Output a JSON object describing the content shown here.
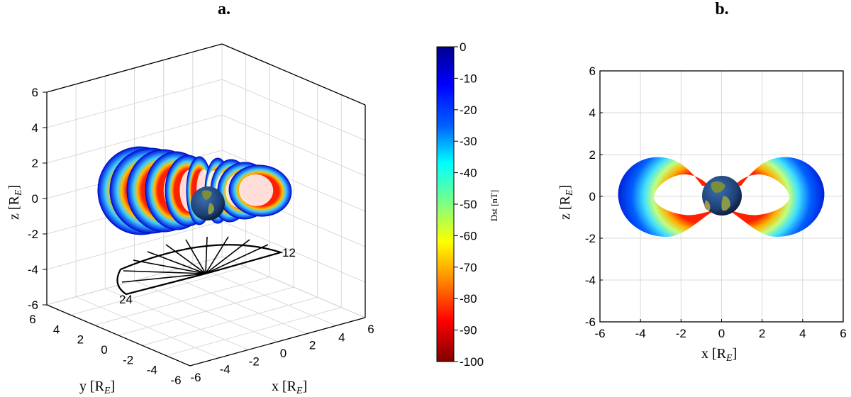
{
  "figure": {
    "panel_a_label": "a.",
    "panel_b_label": "b."
  },
  "colors": {
    "colormap": [
      "#7f0000",
      "#ff0000",
      "#ff8000",
      "#ffff00",
      "#80ff80",
      "#00ffff",
      "#0080ff",
      "#0000ff",
      "#00008f"
    ],
    "earth_ocean": "#1c3f73",
    "earth_land": "#7a8f3a",
    "grid": "#d9d9d9"
  },
  "colorbar": {
    "label": "Dst [nT]",
    "ticks": [
      "0",
      "-10",
      "-20",
      "-30",
      "-40",
      "-50",
      "-60",
      "-70",
      "-80",
      "-90",
      "-100"
    ],
    "range": [
      -100,
      0
    ]
  },
  "panel_a": {
    "zlabel": "z [R",
    "zlabel_sub": "E",
    "zlabel_end": "]",
    "xlabel": "x [R",
    "xlabel_sub": "E",
    "xlabel_end": "]",
    "ylabel": "y [R",
    "ylabel_sub": "E",
    "ylabel_end": "]",
    "z_ticks": [
      "6",
      "4",
      "2",
      "0",
      "-2",
      "-4",
      "-6"
    ],
    "x_ticks": [
      "-6",
      "-4",
      "-2",
      "0",
      "2",
      "4",
      "6"
    ],
    "y_ticks": [
      "6",
      "4",
      "2",
      "0",
      "-2",
      "-4",
      "-6"
    ],
    "mlt_label_12": "12",
    "mlt_label_24": "24"
  },
  "chart_data": [
    {
      "type": "scatter",
      "title": "",
      "panel": "a",
      "projection": "3d",
      "description_units": "Earth radii",
      "xlabel": "x [RE]",
      "ylabel": "y [RE]",
      "zlabel": "z [RE]",
      "xlim": [
        -6,
        6
      ],
      "ylim": [
        -6,
        6
      ],
      "zlim": [
        -6,
        6
      ],
      "grid": true,
      "color_variable": "Dst [nT]",
      "color_range": [
        -100,
        0
      ],
      "mlt_dial": {
        "z": -4,
        "labels": [
          "12",
          "24"
        ]
      }
    },
    {
      "type": "scatter",
      "title": "",
      "panel": "b",
      "projection": "x-z",
      "xlabel": "x [RE]",
      "ylabel": "z [RE]",
      "xlim": [
        -6,
        6
      ],
      "ylim": [
        -6,
        6
      ],
      "x_ticks": [
        -6,
        -4,
        -2,
        0,
        2,
        4,
        6
      ],
      "y_ticks": [
        -6,
        -4,
        -2,
        0,
        2,
        4,
        6
      ],
      "grid": true,
      "belt_lobes": [
        {
          "side": "negative x",
          "x_extent": [
            -5,
            -1
          ],
          "z_extent": [
            -2,
            2
          ]
        },
        {
          "side": "positive x",
          "x_extent": [
            1,
            5
          ],
          "z_extent": [
            -2,
            2
          ]
        }
      ],
      "color_variable": "Dst [nT]",
      "color_range": [
        -100,
        0
      ]
    }
  ]
}
